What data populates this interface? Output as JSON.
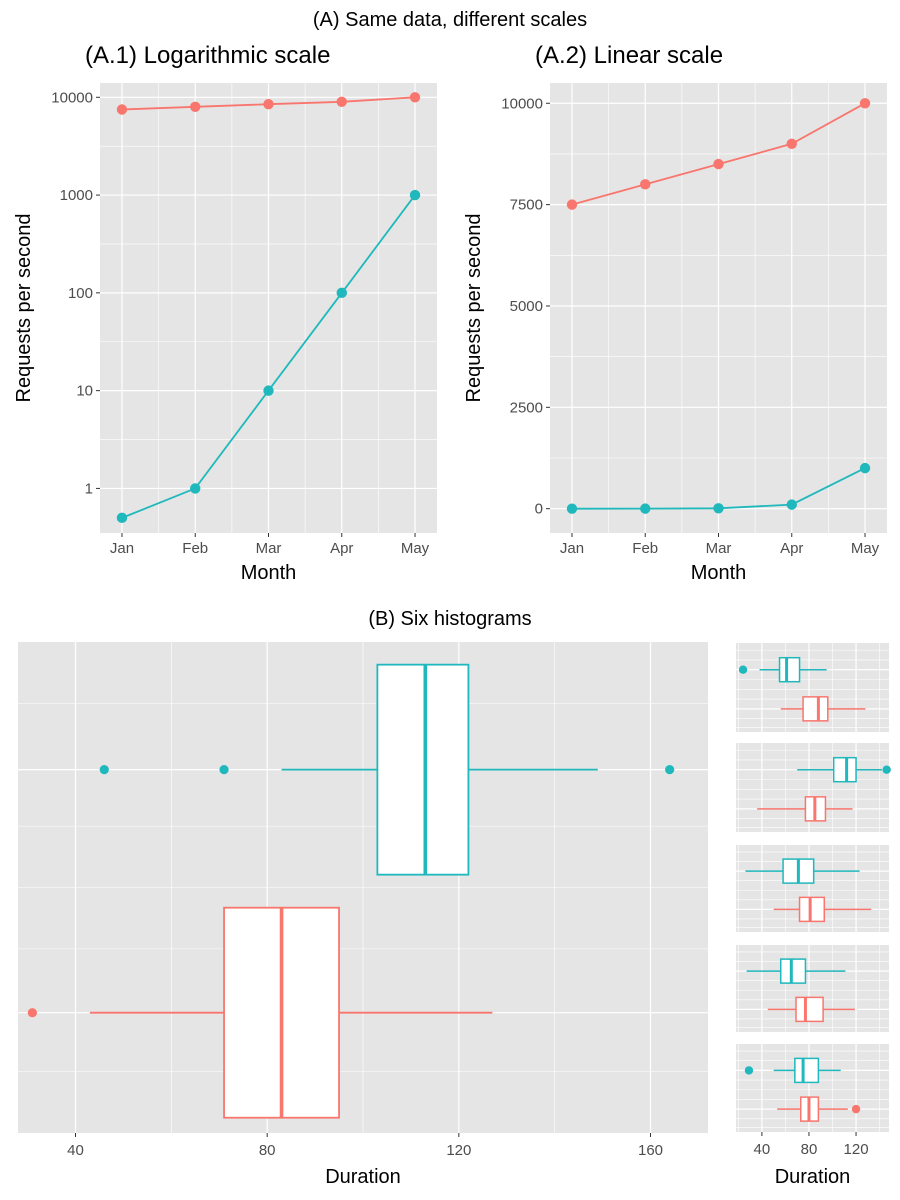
{
  "figure_title": "(A) Same data, different scales",
  "section_b_title": "(B) Six histograms",
  "colors": {
    "panel_bg": "#e5e5e5",
    "grid": "#ffffff",
    "series_red": "#f8766d",
    "series_teal": "#1fb8bc",
    "tick_text": "#4d4d4d"
  },
  "chart_data": [
    {
      "id": "A1",
      "type": "line",
      "title": "(A.1) Logarithmic scale",
      "xlabel": "Month",
      "ylabel": "Requests per second",
      "y_scale": "log10",
      "ylim": [
        0.35,
        14000
      ],
      "y_ticks": [
        1,
        10,
        100,
        1000,
        10000
      ],
      "y_tick_labels": [
        "1",
        "10",
        "100",
        "1000",
        "10000"
      ],
      "categories": [
        "Jan",
        "Feb",
        "Mar",
        "Apr",
        "May"
      ],
      "grid": true,
      "legend": "none",
      "series": [
        {
          "color": "#f8766d",
          "values": [
            7500,
            8000,
            8500,
            9000,
            10000
          ]
        },
        {
          "color": "#1fb8bc",
          "values": [
            0.5,
            1,
            10,
            100,
            1000
          ]
        }
      ]
    },
    {
      "id": "A2",
      "type": "line",
      "title": "(A.2) Linear scale",
      "xlabel": "Month",
      "ylabel": "Requests per second",
      "y_scale": "linear",
      "ylim": [
        -600,
        10500
      ],
      "y_ticks": [
        0,
        2500,
        5000,
        7500,
        10000
      ],
      "y_tick_labels": [
        "0",
        "2500",
        "5000",
        "7500",
        "10000"
      ],
      "categories": [
        "Jan",
        "Feb",
        "Mar",
        "Apr",
        "May"
      ],
      "grid": true,
      "legend": "none",
      "series": [
        {
          "color": "#f8766d",
          "values": [
            7500,
            8000,
            8500,
            9000,
            10000
          ]
        },
        {
          "color": "#1fb8bc",
          "values": [
            0.5,
            1,
            10,
            100,
            1000
          ]
        }
      ]
    },
    {
      "id": "B_main",
      "type": "boxplot",
      "title": "",
      "xlabel": "Duration",
      "ylabel": "",
      "orientation": "horizontal",
      "xlim": [
        28,
        172
      ],
      "x_ticks": [
        40,
        80,
        120,
        160
      ],
      "x_tick_labels": [
        "40",
        "80",
        "120",
        "160"
      ],
      "grid": true,
      "legend": "none",
      "boxes": [
        {
          "color": "#1fb8bc",
          "position": "upper",
          "q1": 103,
          "median": 113,
          "q3": 122,
          "whisker_low": 83,
          "whisker_high": 149,
          "outliers": [
            46,
            71,
            164
          ]
        },
        {
          "color": "#f8766d",
          "position": "lower",
          "q1": 71,
          "median": 83,
          "q3": 95,
          "whisker_low": 43,
          "whisker_high": 127,
          "outliers": [
            31
          ]
        }
      ]
    },
    {
      "id": "B_small",
      "type": "boxplot",
      "title": "",
      "xlabel": "Duration",
      "orientation": "horizontal",
      "xlim": [
        18,
        148
      ],
      "x_ticks": [
        40,
        80,
        120
      ],
      "x_tick_labels": [
        "40",
        "80",
        "120"
      ],
      "grid": true,
      "legend": "none",
      "panels": [
        {
          "boxes": [
            {
              "color": "#1fb8bc",
              "position": "upper",
              "q1": 55,
              "median": 61,
              "q3": 72,
              "whisker_low": 38,
              "whisker_high": 95,
              "outliers": [
                24
              ]
            },
            {
              "color": "#f8766d",
              "position": "lower",
              "q1": 75,
              "median": 88,
              "q3": 96,
              "whisker_low": 56,
              "whisker_high": 128,
              "outliers": []
            }
          ]
        },
        {
          "boxes": [
            {
              "color": "#1fb8bc",
              "position": "upper",
              "q1": 101,
              "median": 112,
              "q3": 120,
              "whisker_low": 70,
              "whisker_high": 142,
              "outliers": [
                146
              ]
            },
            {
              "color": "#f8766d",
              "position": "lower",
              "q1": 77,
              "median": 85,
              "q3": 94,
              "whisker_low": 36,
              "whisker_high": 117,
              "outliers": []
            }
          ]
        },
        {
          "boxes": [
            {
              "color": "#1fb8bc",
              "position": "upper",
              "q1": 58,
              "median": 71,
              "q3": 84,
              "whisker_low": 26,
              "whisker_high": 123,
              "outliers": []
            },
            {
              "color": "#f8766d",
              "position": "lower",
              "q1": 72,
              "median": 81,
              "q3": 93,
              "whisker_low": 50,
              "whisker_high": 133,
              "outliers": []
            }
          ]
        },
        {
          "boxes": [
            {
              "color": "#1fb8bc",
              "position": "upper",
              "q1": 56,
              "median": 65,
              "q3": 77,
              "whisker_low": 27,
              "whisker_high": 111,
              "outliers": []
            },
            {
              "color": "#f8766d",
              "position": "lower",
              "q1": 69,
              "median": 77,
              "q3": 92,
              "whisker_low": 45,
              "whisker_high": 119,
              "outliers": []
            }
          ]
        },
        {
          "boxes": [
            {
              "color": "#1fb8bc",
              "position": "upper",
              "q1": 68,
              "median": 75,
              "q3": 88,
              "whisker_low": 50,
              "whisker_high": 107,
              "outliers": [
                29
              ]
            },
            {
              "color": "#f8766d",
              "position": "lower",
              "q1": 73,
              "median": 80,
              "q3": 88,
              "whisker_low": 53,
              "whisker_high": 113,
              "outliers": [
                120
              ]
            }
          ]
        }
      ]
    }
  ]
}
